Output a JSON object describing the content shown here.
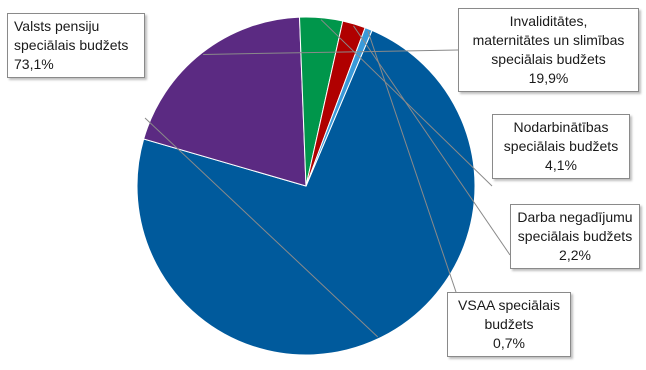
{
  "chart_data": {
    "type": "pie",
    "title": "",
    "slices": [
      {
        "label_lines": [
          "Valsts pensiju",
          "speciālais budžets"
        ],
        "value_text": "73,1%",
        "value": 73.1,
        "color": "#005a9c"
      },
      {
        "label_lines": [
          "Invaliditātes,",
          "maternitātes un slimības",
          "speciālais budžets"
        ],
        "value_text": "19,9%",
        "value": 19.9,
        "color": "#5b2a82"
      },
      {
        "label_lines": [
          "Nodarbinātības",
          "speciālais budžets"
        ],
        "value_text": "4,1%",
        "value": 4.1,
        "color": "#00964b"
      },
      {
        "label_lines": [
          "Darba negadījumu",
          "speciālais budžets"
        ],
        "value_text": "2,2%",
        "value": 2.2,
        "color": "#b00000"
      },
      {
        "label_lines": [
          "VSAA speciālais",
          "budžets"
        ],
        "value_text": "0,7%",
        "value": 0.7,
        "color": "#3a9ad9"
      }
    ],
    "legend": "none"
  }
}
